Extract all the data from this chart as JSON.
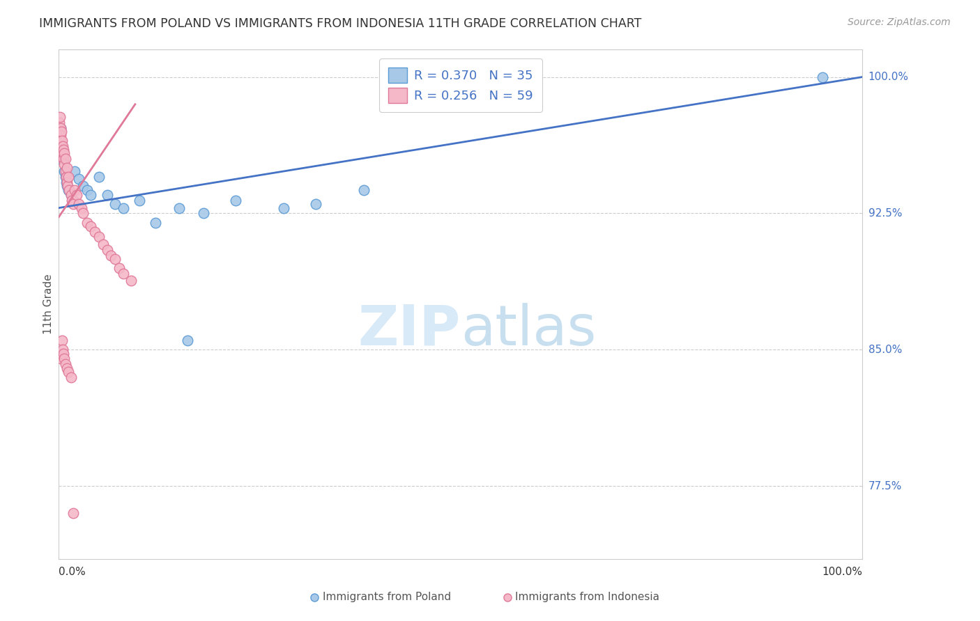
{
  "title": "IMMIGRANTS FROM POLAND VS IMMIGRANTS FROM INDONESIA 11TH GRADE CORRELATION CHART",
  "source": "Source: ZipAtlas.com",
  "ylabel": "11th Grade",
  "yticks": [
    "100.0%",
    "92.5%",
    "85.0%",
    "77.5%"
  ],
  "ytick_values": [
    1.0,
    0.925,
    0.85,
    0.775
  ],
  "poland_color": "#a8c8e8",
  "indonesia_color": "#f4b8c8",
  "poland_edge_color": "#5b9bd5",
  "indonesia_edge_color": "#e07898",
  "poland_line_color": "#4472c4",
  "indonesia_line_color": "#e07898",
  "watermark_color": "#d8eaf8",
  "xlim": [
    0.0,
    1.0
  ],
  "ylim": [
    0.735,
    1.015
  ],
  "x_poland": [
    0.0008,
    0.0012,
    0.0015,
    0.002,
    0.0025,
    0.003,
    0.004,
    0.005,
    0.006,
    0.007,
    0.008,
    0.009,
    0.01,
    0.012,
    0.015,
    0.018,
    0.02,
    0.025,
    0.03,
    0.035,
    0.04,
    0.05,
    0.06,
    0.07,
    0.08,
    0.1,
    0.12,
    0.15,
    0.18,
    0.22,
    0.28,
    0.32,
    0.38,
    0.95,
    0.16
  ],
  "y_poland": [
    0.955,
    0.96,
    0.97,
    0.972,
    0.965,
    0.958,
    0.96,
    0.955,
    0.955,
    0.948,
    0.945,
    0.942,
    0.94,
    0.938,
    0.935,
    0.932,
    0.948,
    0.944,
    0.94,
    0.938,
    0.935,
    0.945,
    0.935,
    0.93,
    0.928,
    0.932,
    0.92,
    0.928,
    0.925,
    0.932,
    0.928,
    0.93,
    0.938,
    1.0,
    0.855
  ],
  "x_indonesia": [
    0.0005,
    0.0007,
    0.001,
    0.001,
    0.0012,
    0.0015,
    0.002,
    0.002,
    0.0025,
    0.003,
    0.003,
    0.0035,
    0.004,
    0.004,
    0.005,
    0.005,
    0.005,
    0.006,
    0.006,
    0.007,
    0.007,
    0.008,
    0.008,
    0.009,
    0.01,
    0.01,
    0.011,
    0.012,
    0.013,
    0.015,
    0.016,
    0.018,
    0.02,
    0.022,
    0.025,
    0.028,
    0.03,
    0.035,
    0.04,
    0.045,
    0.05,
    0.055,
    0.06,
    0.065,
    0.07,
    0.075,
    0.08,
    0.09,
    0.002,
    0.003,
    0.004,
    0.005,
    0.006,
    0.007,
    0.008,
    0.01,
    0.012,
    0.015,
    0.018
  ],
  "y_indonesia": [
    0.972,
    0.975,
    0.978,
    0.97,
    0.965,
    0.968,
    0.972,
    0.968,
    0.965,
    0.97,
    0.962,
    0.958,
    0.965,
    0.96,
    0.958,
    0.962,
    0.955,
    0.96,
    0.955,
    0.958,
    0.952,
    0.955,
    0.948,
    0.945,
    0.95,
    0.942,
    0.94,
    0.945,
    0.938,
    0.935,
    0.932,
    0.93,
    0.938,
    0.935,
    0.93,
    0.928,
    0.925,
    0.92,
    0.918,
    0.915,
    0.912,
    0.908,
    0.905,
    0.902,
    0.9,
    0.895,
    0.892,
    0.888,
    0.845,
    0.848,
    0.855,
    0.85,
    0.848,
    0.845,
    0.842,
    0.84,
    0.838,
    0.835,
    0.76
  ],
  "poland_line_x": [
    0.0,
    1.0
  ],
  "poland_line_y": [
    0.928,
    1.0
  ],
  "indonesia_line_x": [
    0.0,
    0.095
  ],
  "indonesia_line_y": [
    0.923,
    0.985
  ]
}
